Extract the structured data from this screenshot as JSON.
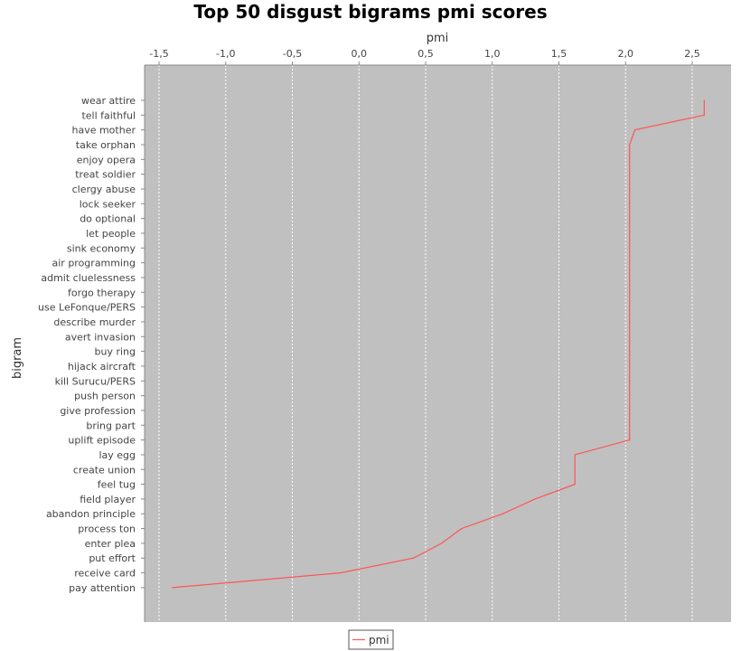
{
  "chart_data": {
    "type": "line",
    "orientation": "horizontal",
    "title": "Top 50 disgust bigrams pmi scores",
    "xlabel": "pmi",
    "ylabel": "bigram",
    "xlim": [
      -1.6,
      2.8
    ],
    "x_ticks": [
      -1.5,
      -1.0,
      -0.5,
      0.0,
      0.5,
      1.0,
      1.5,
      2.0,
      2.5
    ],
    "x_tick_labels": [
      "-1,5",
      "-1,0",
      "-0,5",
      "0,0",
      "0,5",
      "1,0",
      "1,5",
      "2,0",
      "2,5"
    ],
    "x_axis_position": "top",
    "grid": true,
    "background": "#c0c0c0",
    "legend": {
      "placement": "bottom-center",
      "entries": [
        "pmi"
      ]
    },
    "categories": [
      "wear attire",
      "tell faithful",
      "have mother",
      "take orphan",
      "enjoy opera",
      "treat soldier",
      "clergy abuse",
      "lock seeker",
      "do optional",
      "let people",
      "sink economy",
      "air programming",
      "admit cluelessness",
      "forgo therapy",
      "use LeFonque/PERS",
      "describe murder",
      "avert invasion",
      "buy ring",
      "hijack aircraft",
      "kill Surucu/PERS",
      "push person",
      "give profession",
      "bring part",
      "uplift episode",
      "lay egg",
      "create union",
      "feel tug",
      "field player",
      "abandon principle",
      "process ton",
      "enter plea",
      "put effort",
      "receive card",
      "pay attention"
    ],
    "series": [
      {
        "name": "pmi",
        "color": "#ff5555",
        "values": [
          2.59,
          2.59,
          2.07,
          2.03,
          2.03,
          2.03,
          2.03,
          2.03,
          2.03,
          2.03,
          2.03,
          2.03,
          2.03,
          2.03,
          2.03,
          2.03,
          2.03,
          2.03,
          2.03,
          2.03,
          2.03,
          2.03,
          2.03,
          2.03,
          1.62,
          1.62,
          1.62,
          1.32,
          1.08,
          0.77,
          0.62,
          0.41,
          -0.14,
          -1.4
        ]
      }
    ]
  }
}
